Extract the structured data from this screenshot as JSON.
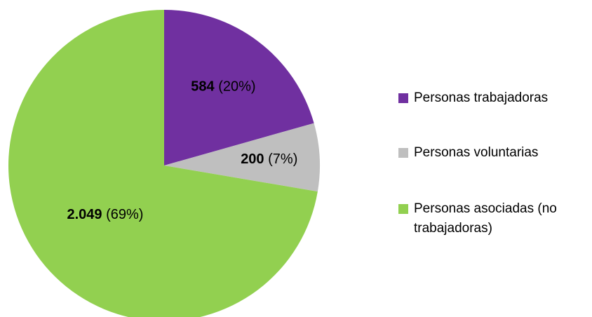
{
  "chart_data": {
    "type": "pie",
    "categories": [
      "Personas trabajadoras",
      "Personas voluntarias",
      "Personas asociadas (no trabajadoras)"
    ],
    "values": [
      584,
      200,
      2049
    ],
    "value_labels": [
      "584",
      "200",
      "2.049"
    ],
    "percents": [
      20,
      7,
      69
    ],
    "percent_labels": [
      "(20%)",
      "(7%)",
      "(69%)"
    ],
    "colors": [
      "#7030a0",
      "#bfbfbf",
      "#92d050"
    ],
    "legend": "right"
  }
}
